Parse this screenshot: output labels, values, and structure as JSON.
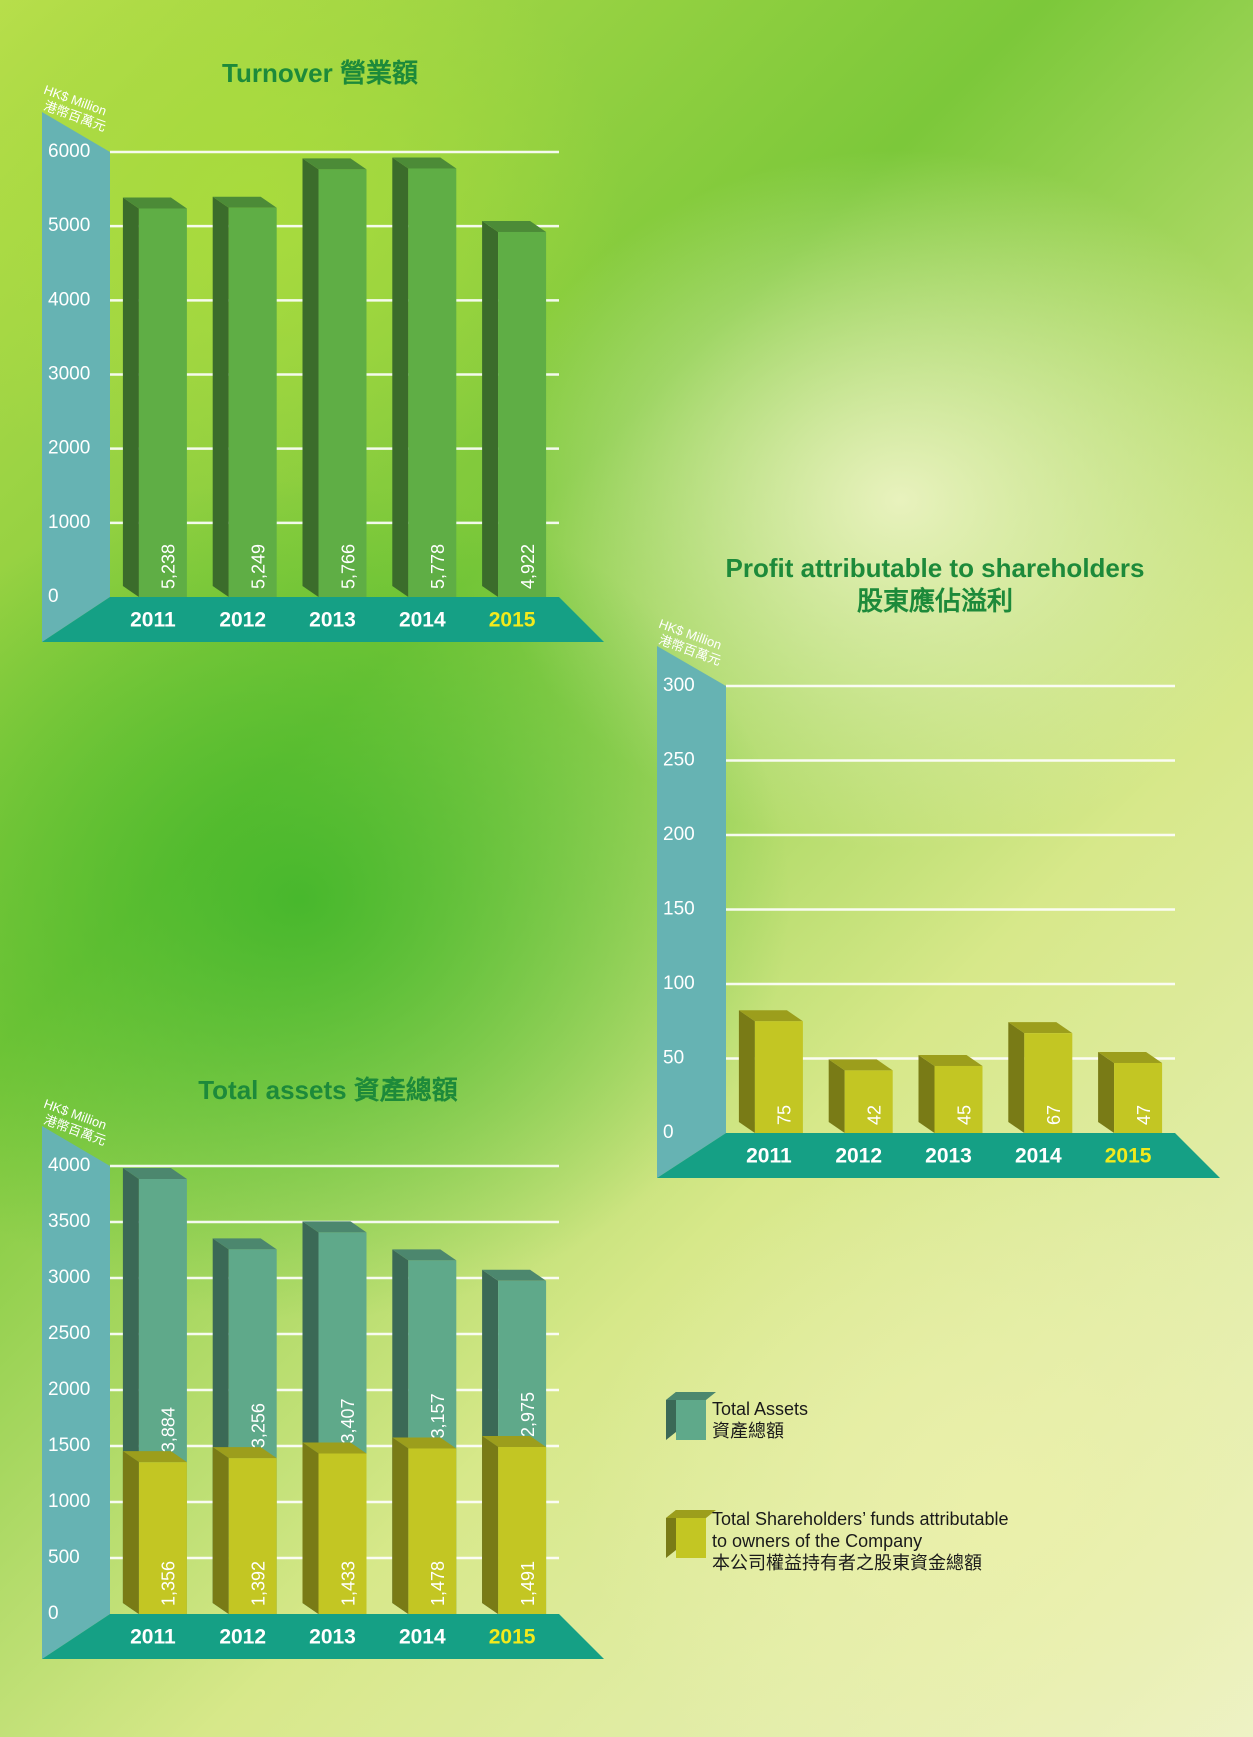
{
  "chart_data": [
    {
      "type": "bar",
      "title": "Turnover 營業額",
      "ylabel": [
        "HK$ Million",
        "港幣百萬元"
      ],
      "categories": [
        "2011",
        "2012",
        "2013",
        "2014",
        "2015"
      ],
      "category_colors": [
        "#ffffff",
        "#ffffff",
        "#ffffff",
        "#ffffff",
        "#f2ea1c"
      ],
      "values": [
        5238,
        5249,
        5766,
        5778,
        4922
      ],
      "value_labels": [
        "5,238",
        "5,249",
        "5,766",
        "5,778",
        "4,922"
      ],
      "color": "#5fae45",
      "ylim": [
        0,
        6000
      ],
      "yticks": [
        0,
        1000,
        2000,
        3000,
        4000,
        5000,
        6000
      ],
      "grid": true
    },
    {
      "type": "bar",
      "title": "Profit attributable to shareholders",
      "subtitle": "股東應佔溢利",
      "ylabel": [
        "HK$ Million",
        "港幣百萬元"
      ],
      "categories": [
        "2011",
        "2012",
        "2013",
        "2014",
        "2015"
      ],
      "category_colors": [
        "#ffffff",
        "#ffffff",
        "#ffffff",
        "#ffffff",
        "#f2ea1c"
      ],
      "values": [
        75,
        42,
        45,
        67,
        47
      ],
      "color": "#c3c623",
      "ylim": [
        0,
        300
      ],
      "yticks": [
        0,
        50,
        100,
        150,
        200,
        250,
        300
      ],
      "grid": true
    },
    {
      "type": "overlap-bar",
      "title": "Total assets 資產總額",
      "ylabel": [
        "HK$ Million",
        "港幣百萬元"
      ],
      "categories": [
        "2011",
        "2012",
        "2013",
        "2014",
        "2015"
      ],
      "category_colors": [
        "#ffffff",
        "#ffffff",
        "#ffffff",
        "#ffffff",
        "#f2ea1c"
      ],
      "series": [
        {
          "name": "Total Assets\n資產總額",
          "color": "#5fa98a",
          "values": [
            3884,
            3256,
            3407,
            3157,
            2975
          ],
          "value_labels": [
            "3,884",
            "3,256",
            "3,407",
            "3,157",
            "2,975"
          ]
        },
        {
          "name": "Total Shareholders’ funds attributable\nto owners of the Company\n本公司權益持有者之股東資金總額",
          "color": "#c3c623",
          "values": [
            1356,
            1392,
            1433,
            1478,
            1491
          ],
          "value_labels": [
            "1,356",
            "1,392",
            "1,433",
            "1,478",
            "1,491"
          ]
        }
      ],
      "ylim": [
        0,
        4000
      ],
      "yticks": [
        0,
        500,
        1000,
        1500,
        2000,
        2500,
        3000,
        3500,
        4000
      ],
      "grid": true
    }
  ]
}
